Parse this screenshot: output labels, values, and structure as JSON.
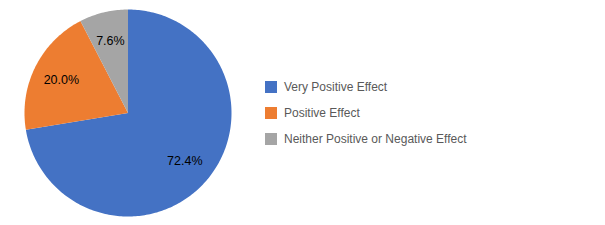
{
  "chart_data": {
    "type": "pie",
    "categories": [
      "Very Positive Effect",
      "Positive Effect",
      "Neither Positive or Negative Effect"
    ],
    "values": [
      72.4,
      20.0,
      7.6
    ],
    "value_labels": [
      "72.4%",
      "20.0%",
      "7.6%"
    ],
    "colors": [
      "#4472C4",
      "#ED7D31",
      "#A5A5A5"
    ],
    "data_labels": true,
    "legend": "right"
  }
}
